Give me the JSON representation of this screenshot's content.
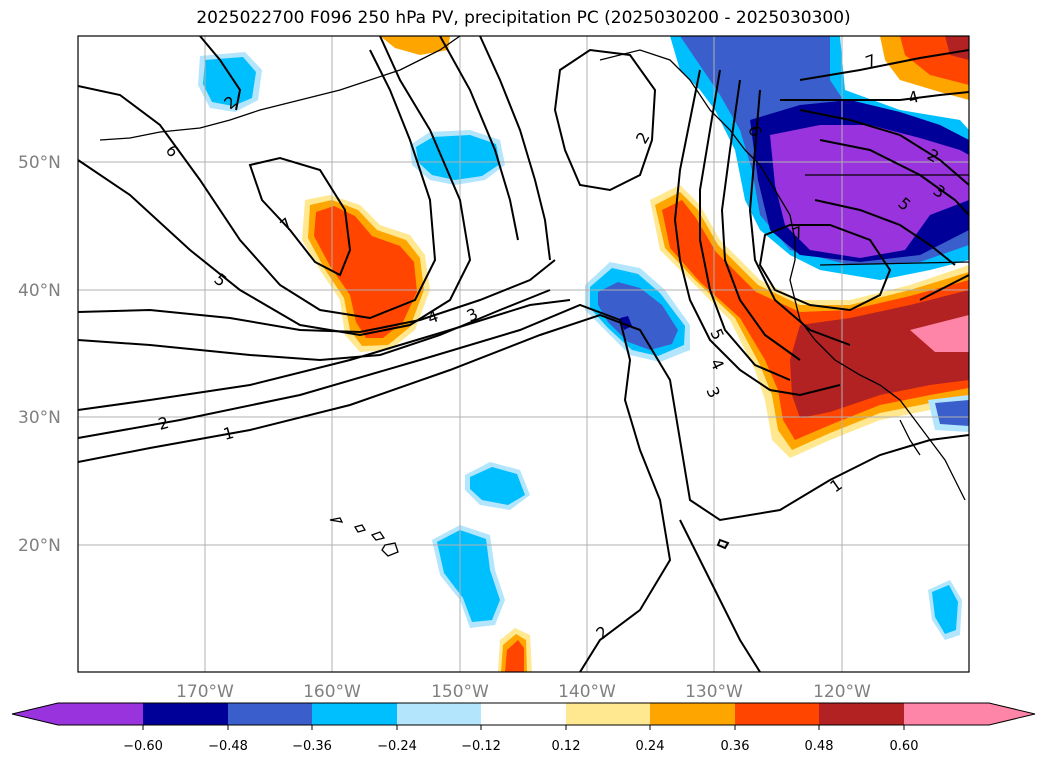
{
  "title": "2025022700 F096 250 hPa PV, precipitation PC (2025030200 - 2025030300)",
  "map": {
    "lat_labels": [
      "50°N",
      "40°N",
      "30°N",
      "20°N"
    ],
    "lon_labels": [
      "170°W",
      "160°W",
      "150°W",
      "140°W",
      "130°W",
      "120°W"
    ],
    "pv_contour_labels": [
      "7",
      "6",
      "5",
      "4",
      "3",
      "2",
      "1",
      "2",
      "2",
      "7",
      "6",
      "5",
      "4",
      "3",
      "2",
      "1",
      "5",
      "4",
      "3",
      "7",
      "2"
    ]
  },
  "colorbar": {
    "ticks": [
      "−0.60",
      "−0.48",
      "−0.36",
      "−0.24",
      "−0.12",
      "0.12",
      "0.24",
      "0.36",
      "0.48",
      "0.60"
    ],
    "colors": [
      "#9933dd",
      "#000099",
      "#3a5fcd",
      "#00bfff",
      "#b3e5fc",
      "#ffffff",
      "#ffe88f",
      "#ffa500",
      "#ff4500",
      "#b22222",
      "#ff85a8"
    ]
  }
}
